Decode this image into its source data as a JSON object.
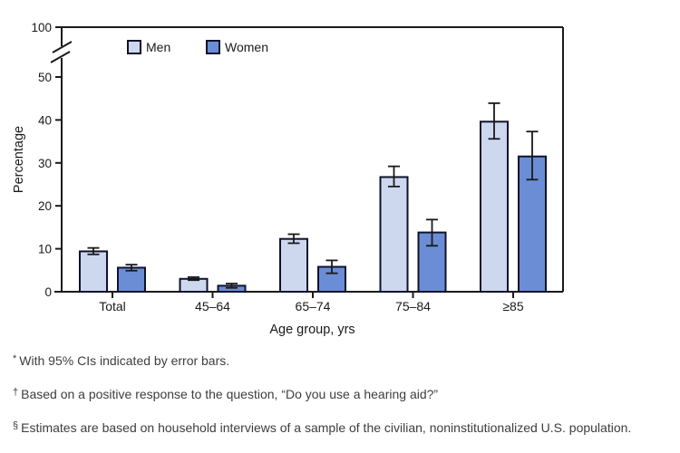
{
  "chart_data": {
    "type": "bar",
    "title": "",
    "xlabel": "Age group, yrs",
    "ylabel": "Percentage",
    "categories": [
      "Total",
      "45–64",
      "65–74",
      "75–84",
      "≥85"
    ],
    "series": [
      {
        "name": "Men",
        "color": "#cdd8ef",
        "values": [
          9.4,
          3.0,
          12.3,
          26.7,
          39.6
        ],
        "ci_low": [
          8.7,
          2.7,
          11.3,
          24.5,
          35.6
        ],
        "ci_high": [
          10.2,
          3.4,
          13.4,
          29.2,
          43.9
        ]
      },
      {
        "name": "Women",
        "color": "#6b8dd6",
        "values": [
          5.6,
          1.4,
          5.8,
          13.8,
          31.5
        ],
        "ci_low": [
          4.9,
          0.9,
          4.3,
          10.7,
          26.1
        ],
        "ci_high": [
          6.3,
          1.9,
          7.3,
          16.8,
          37.3
        ]
      }
    ],
    "y_ticks": [
      0,
      10,
      20,
      30,
      40,
      50
    ],
    "y_break_top_tick": 100,
    "ylim": [
      0,
      50
    ],
    "axis_break": true,
    "grid": false,
    "legend_position": "top",
    "error_bars": "95% CI",
    "bar_border_color": "#10122b",
    "axis_color": "#1a1a1a"
  },
  "footnotes": [
    {
      "marker": "*",
      "text": "With 95% CIs indicated by error bars."
    },
    {
      "marker": "†",
      "text": "Based on a positive response to the question, “Do you use a hearing aid?”"
    },
    {
      "marker": "§",
      "text": "Estimates are based on household interviews of a sample of the civilian, noninstitutionalized U.S. population."
    }
  ]
}
